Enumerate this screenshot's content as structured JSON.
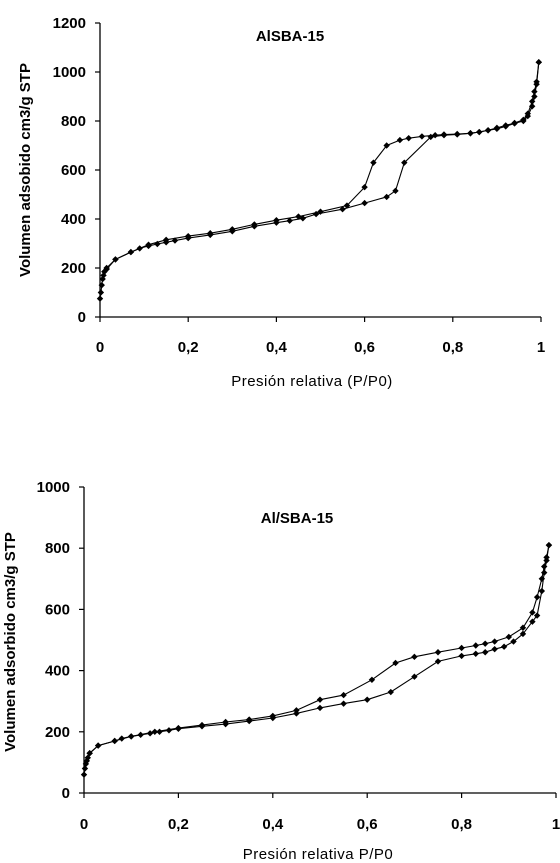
{
  "chart_data": [
    {
      "type": "line",
      "title": "AlSBA-15",
      "xlabel": "Presión relativa  (P/P0)",
      "ylabel": "Volumen adsobido cm3/g STP",
      "xlim": [
        0,
        1
      ],
      "ylim": [
        0,
        1200
      ],
      "xticks": [
        "0",
        "0,2",
        "0,4",
        "0,6",
        "0,8",
        "1"
      ],
      "yticks": [
        "0",
        "200",
        "400",
        "600",
        "800",
        "1000",
        "1200"
      ],
      "grid": false,
      "series": [
        {
          "x": [
            0.0,
            0.002,
            0.004,
            0.006,
            0.008,
            0.01,
            0.015,
            0.035,
            0.07,
            0.09,
            0.11,
            0.13,
            0.15,
            0.17,
            0.2,
            0.25,
            0.3,
            0.35,
            0.4,
            0.43,
            0.46,
            0.49,
            0.55,
            0.6,
            0.65,
            0.67,
            0.69,
            0.75,
            0.78,
            0.81,
            0.84,
            0.86,
            0.88,
            0.9,
            0.92,
            0.94,
            0.96,
            0.97,
            0.98,
            0.985,
            0.99,
            0.995
          ],
          "values": [
            75,
            100,
            130,
            155,
            170,
            185,
            195,
            235,
            265,
            280,
            290,
            298,
            305,
            312,
            322,
            335,
            350,
            370,
            385,
            393,
            403,
            420,
            440,
            465,
            490,
            515,
            630,
            735,
            742,
            745,
            750,
            755,
            762,
            768,
            778,
            790,
            800,
            820,
            860,
            900,
            950,
            1040
          ]
        },
        {
          "x": [
            0.995,
            0.99,
            0.985,
            0.98,
            0.97,
            0.96,
            0.94,
            0.92,
            0.9,
            0.88,
            0.86,
            0.84,
            0.81,
            0.78,
            0.76,
            0.73,
            0.7,
            0.68,
            0.65,
            0.62,
            0.6,
            0.56,
            0.5,
            0.45,
            0.4,
            0.35,
            0.3,
            0.25,
            0.2,
            0.15,
            0.11,
            0.07,
            0.035,
            0.015,
            0.01
          ],
          "values": [
            1040,
            960,
            920,
            880,
            830,
            805,
            792,
            782,
            772,
            762,
            755,
            750,
            747,
            745,
            742,
            737,
            730,
            722,
            700,
            630,
            530,
            455,
            430,
            410,
            395,
            378,
            358,
            342,
            330,
            315,
            295,
            265,
            235,
            200,
            185
          ]
        }
      ]
    },
    {
      "type": "line",
      "title": "Al/SBA-15",
      "xlabel": "Presión relativa P/P0",
      "ylabel": "Volumen adsorbido cm3/g STP",
      "xlim": [
        0,
        1
      ],
      "ylim": [
        0,
        1000
      ],
      "xticks": [
        "0",
        "0,2",
        "0,4",
        "0,6",
        "0,8",
        "1"
      ],
      "yticks": [
        "0",
        "200",
        "400",
        "600",
        "800",
        "1000"
      ],
      "grid": false,
      "series": [
        {
          "x": [
            0.0,
            0.002,
            0.004,
            0.006,
            0.008,
            0.012,
            0.03,
            0.065,
            0.08,
            0.1,
            0.12,
            0.14,
            0.16,
            0.18,
            0.2,
            0.25,
            0.3,
            0.35,
            0.4,
            0.45,
            0.5,
            0.55,
            0.6,
            0.65,
            0.7,
            0.75,
            0.8,
            0.83,
            0.85,
            0.87,
            0.89,
            0.91,
            0.93,
            0.95,
            0.96,
            0.97,
            0.975,
            0.98,
            0.985
          ],
          "values": [
            60,
            80,
            95,
            105,
            115,
            130,
            155,
            170,
            178,
            185,
            190,
            195,
            200,
            205,
            210,
            218,
            225,
            235,
            245,
            260,
            278,
            292,
            305,
            330,
            380,
            430,
            448,
            455,
            460,
            470,
            478,
            495,
            520,
            560,
            580,
            660,
            720,
            760,
            810
          ]
        },
        {
          "x": [
            0.985,
            0.98,
            0.975,
            0.97,
            0.96,
            0.95,
            0.93,
            0.9,
            0.87,
            0.85,
            0.83,
            0.8,
            0.75,
            0.7,
            0.66,
            0.61,
            0.55,
            0.5,
            0.45,
            0.4,
            0.35,
            0.3,
            0.25,
            0.2,
            0.15,
            0.1,
            0.065,
            0.03,
            0.012
          ],
          "values": [
            810,
            770,
            740,
            700,
            640,
            590,
            540,
            510,
            495,
            488,
            482,
            474,
            460,
            445,
            425,
            370,
            320,
            305,
            270,
            252,
            240,
            232,
            222,
            212,
            200,
            185,
            170,
            155,
            130
          ]
        }
      ]
    }
  ]
}
